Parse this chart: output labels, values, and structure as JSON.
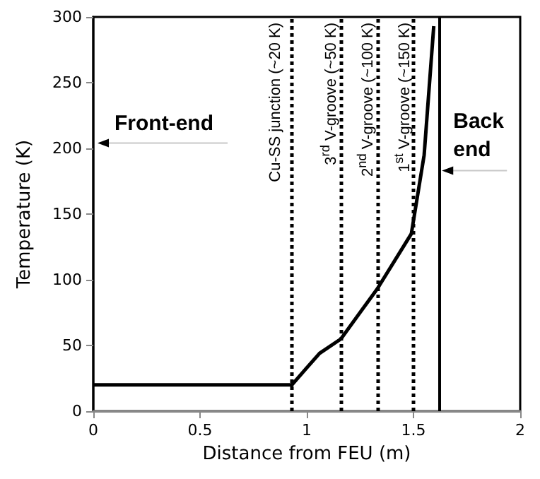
{
  "chart_data": {
    "type": "line",
    "xlabel": "Distance from FEU (m)",
    "ylabel": "Temperature (K)",
    "series": [
      {
        "color": "#000000",
        "x": [
          0,
          0.93,
          1.0,
          1.06,
          1.16,
          1.33,
          1.49,
          1.55,
          1.595
        ],
        "values": [
          20,
          20,
          33,
          44,
          55,
          93,
          135,
          195,
          293
        ]
      }
    ],
    "xlim": [
      0,
      2
    ],
    "xticks": [
      0,
      0.5,
      1,
      1.5,
      2
    ],
    "ylim": [
      0,
      300
    ],
    "yticks": [
      0,
      50,
      100,
      150,
      200,
      250,
      300
    ],
    "grid": false,
    "marker": "none",
    "line_style": "solid",
    "ref_lines": [
      {
        "axis": "x",
        "value": 0.93,
        "label": "Cu-SS junction (~20 K)",
        "line_style": "dotted",
        "color": "#000000"
      },
      {
        "axis": "x",
        "value": 1.16,
        "label": "3$^{rd}$ V-groove (~50 K)",
        "line_style": "dotted",
        "color": "#000000"
      },
      {
        "axis": "x",
        "value": 1.33,
        "label": "2$^{nd}$ V-groove (~100 K)",
        "line_style": "dotted",
        "color": "#000000"
      },
      {
        "axis": "x",
        "value": 1.5,
        "label": "1$^{st}$ V-groove (~150 K)",
        "line_style": "dotted",
        "color": "#000000"
      },
      {
        "axis": "x",
        "value": 1.62,
        "label": null,
        "line_style": "solid",
        "color": "#000000"
      }
    ],
    "annotations": [
      "Front-end",
      {
        "text": "Back\nend",
        "x": 1.62,
        "y": 183
      }
    ]
  }
}
